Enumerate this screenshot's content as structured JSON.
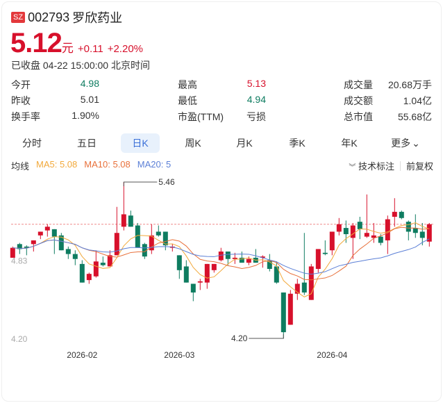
{
  "header": {
    "exchange": "SZ",
    "code": "002793",
    "name": "罗欣药业"
  },
  "quote": {
    "price": "5.12",
    "unit": "元",
    "change": "+0.11",
    "change_pct": "+2.20%",
    "status": "已收盘 04-22 15:00:00 北京时间"
  },
  "stats": [
    {
      "label": "今开",
      "value": "4.98",
      "color": "#0e7c60"
    },
    {
      "label": "最高",
      "value": "5.13",
      "color": "#d7102b"
    },
    {
      "label": "成交量",
      "value": "20.68万手",
      "color": "#333333"
    },
    {
      "label": "昨收",
      "value": "5.01",
      "color": "#333333"
    },
    {
      "label": "最低",
      "value": "4.94",
      "color": "#0e7c60"
    },
    {
      "label": "成交额",
      "value": "1.04亿",
      "color": "#333333"
    },
    {
      "label": "换手率",
      "value": "1.90%",
      "color": "#333333"
    },
    {
      "label": "市盈(TTM)",
      "value": "亏损",
      "color": "#333333"
    },
    {
      "label": "总市值",
      "value": "55.68亿",
      "color": "#333333"
    }
  ],
  "tabs": [
    "分时",
    "五日",
    "日K",
    "周K",
    "月K",
    "季K",
    "年K",
    "更多"
  ],
  "active_tab": "日K",
  "ma_legend": {
    "title": "均线",
    "ma5": "MA5: 5.08",
    "ma10": "MA10: 5.08",
    "ma20": "MA20: 5"
  },
  "tools": {
    "annotate": "技术标注",
    "adjust": "前复权"
  },
  "colors": {
    "up": "#d7102b",
    "down": "#0e7c60",
    "ma5": "#f2a93b",
    "ma10": "#e8703a",
    "ma20": "#5b7fd6",
    "ref_line": "#f08a8a"
  },
  "chart_data": {
    "type": "candlestick",
    "y_labels": [
      "4.83",
      "4.20"
    ],
    "ylim": [
      4.2,
      5.46
    ],
    "reference_price": 5.12,
    "max_marker": "5.46",
    "min_marker": "4.20",
    "x_ticks": [
      {
        "label": "2026-02",
        "index": 10
      },
      {
        "label": "2026-03",
        "index": 24
      },
      {
        "label": "2026-04",
        "index": 46
      }
    ],
    "ohlc": [
      [
        4.85,
        4.93,
        4.94,
        4.85
      ],
      [
        4.96,
        4.92,
        4.97,
        4.88
      ],
      [
        4.94,
        4.93,
        4.95,
        4.87
      ],
      [
        4.96,
        4.99,
        4.99,
        4.9
      ],
      [
        5.03,
        5.06,
        5.06,
        5.0
      ],
      [
        5.07,
        5.1,
        5.12,
        5.02
      ],
      [
        5.08,
        5.02,
        5.08,
        4.88
      ],
      [
        5.03,
        4.91,
        5.05,
        4.91
      ],
      [
        4.92,
        4.88,
        4.94,
        4.84
      ],
      [
        4.88,
        4.84,
        4.91,
        4.79
      ],
      [
        4.8,
        4.65,
        4.83,
        4.65
      ],
      [
        4.67,
        4.72,
        4.73,
        4.64
      ],
      [
        4.7,
        4.82,
        4.91,
        4.69
      ],
      [
        4.81,
        4.79,
        4.86,
        4.78
      ],
      [
        4.78,
        4.87,
        4.91,
        4.78
      ],
      [
        4.87,
        5.05,
        5.26,
        4.87
      ],
      [
        5.1,
        5.2,
        5.46,
        5.07
      ],
      [
        5.19,
        5.1,
        5.23,
        5.1
      ],
      [
        5.11,
        4.93,
        5.13,
        4.93
      ],
      [
        4.96,
        4.86,
        4.97,
        4.84
      ],
      [
        4.91,
        5.03,
        5.12,
        4.88
      ],
      [
        5.06,
        5.03,
        5.11,
        5.02
      ],
      [
        5.06,
        4.95,
        5.06,
        4.91
      ],
      [
        4.93,
        4.94,
        4.96,
        4.9
      ],
      [
        4.87,
        4.75,
        4.87,
        4.68
      ],
      [
        4.78,
        4.65,
        4.83,
        4.65
      ],
      [
        4.64,
        4.57,
        4.64,
        4.5
      ],
      [
        4.65,
        4.66,
        4.68,
        4.59
      ],
      [
        4.65,
        4.8,
        4.8,
        4.6
      ],
      [
        4.75,
        4.8,
        4.8,
        4.73
      ],
      [
        4.83,
        4.9,
        4.93,
        4.82
      ],
      [
        4.9,
        4.84,
        4.9,
        4.79
      ],
      [
        4.84,
        4.85,
        4.89,
        4.8
      ],
      [
        4.85,
        4.81,
        4.9,
        4.81
      ],
      [
        4.81,
        4.84,
        4.86,
        4.79
      ],
      [
        4.85,
        4.81,
        4.92,
        4.81
      ],
      [
        4.85,
        4.86,
        4.87,
        4.77
      ],
      [
        4.83,
        4.76,
        4.88,
        4.74
      ],
      [
        4.78,
        4.65,
        4.82,
        4.64
      ],
      [
        4.57,
        4.25,
        4.57,
        4.2
      ],
      [
        4.31,
        4.56,
        4.59,
        4.31
      ],
      [
        4.56,
        4.64,
        4.68,
        4.51
      ],
      [
        4.65,
        4.57,
        5.05,
        4.55
      ],
      [
        4.51,
        4.78,
        4.8,
        4.51
      ],
      [
        4.76,
        4.92,
        4.92,
        4.73
      ],
      [
        4.89,
        4.88,
        4.99,
        4.87
      ],
      [
        4.91,
        5.06,
        5.06,
        4.87
      ],
      [
        5.06,
        5.12,
        5.17,
        5.03
      ],
      [
        5.09,
        5.04,
        5.15,
        4.97
      ],
      [
        5.01,
        5.11,
        5.13,
        4.84
      ],
      [
        5.14,
        5.08,
        5.18,
        5.0
      ],
      [
        5.02,
        5.05,
        5.36,
        5.01
      ],
      [
        5.01,
        5.03,
        5.13,
        4.97
      ],
      [
        5.02,
        4.97,
        5.04,
        4.95
      ],
      [
        4.99,
        5.16,
        5.19,
        4.88
      ],
      [
        5.18,
        5.22,
        5.33,
        5.1
      ],
      [
        5.22,
        5.17,
        5.23,
        5.16
      ],
      [
        5.14,
        5.06,
        5.15,
        4.99
      ],
      [
        5.09,
        5.05,
        5.2,
        5.01
      ],
      [
        5.06,
        5.01,
        5.13,
        4.95
      ],
      [
        4.98,
        5.12,
        5.13,
        4.94
      ]
    ]
  }
}
